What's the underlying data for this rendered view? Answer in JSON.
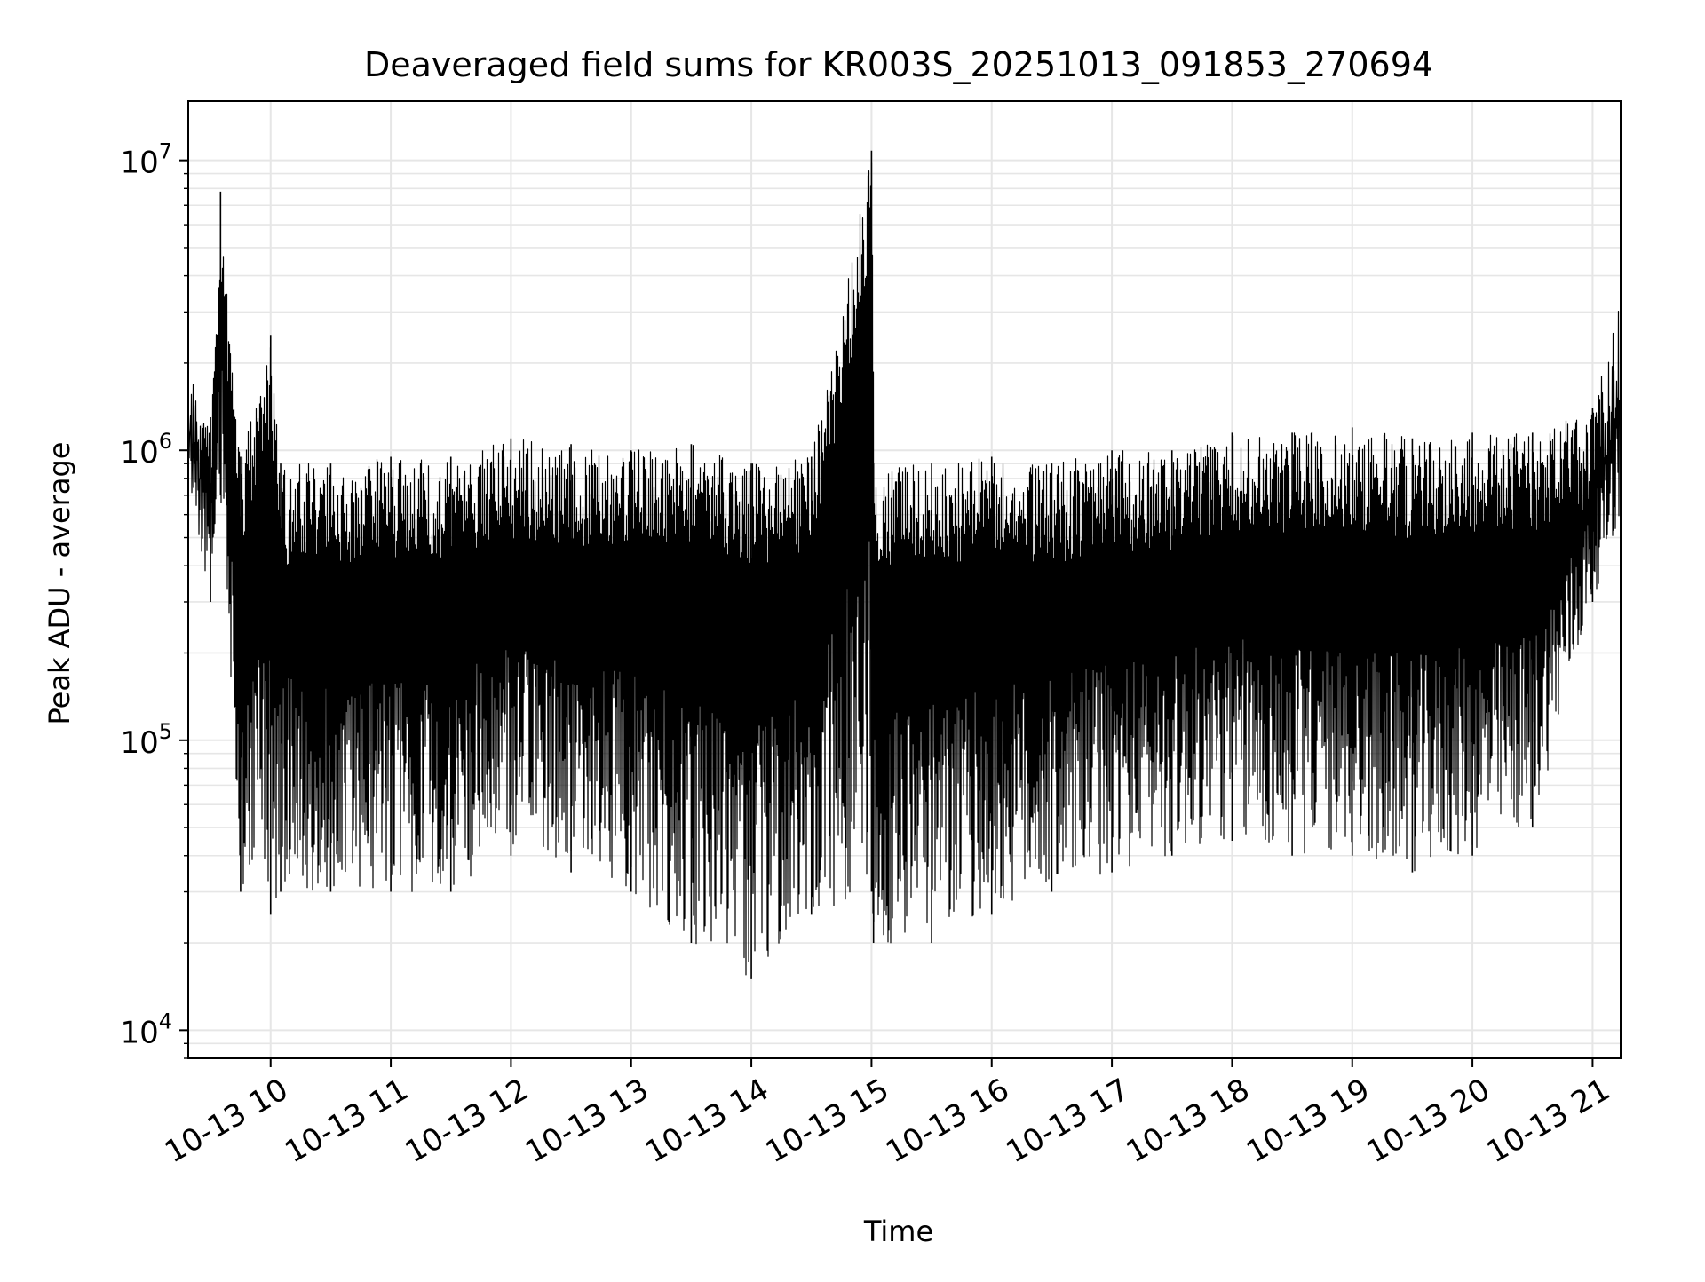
{
  "chart_data": {
    "type": "line",
    "title": "Deaveraged field sums for KR003S_20251013_091853_270694",
    "xlabel": "Time",
    "ylabel": "Peak ADU - average",
    "x_tick_labels": [
      "10-13 10",
      "10-13 11",
      "10-13 12",
      "10-13 13",
      "10-13 14",
      "10-13 15",
      "10-13 16",
      "10-13 17",
      "10-13 18",
      "10-13 19",
      "10-13 20",
      "10-13 21"
    ],
    "x_range": [
      "2025-10-13 09:18:53",
      "2025-10-13 21:14:00"
    ],
    "y_scale": "log",
    "y_ticks": [
      {
        "value": 10000,
        "base": "10",
        "exp": "4"
      },
      {
        "value": 100000,
        "base": "10",
        "exp": "5"
      },
      {
        "value": 1000000,
        "base": "10",
        "exp": "6"
      },
      {
        "value": 10000000,
        "base": "10",
        "exp": "7"
      }
    ],
    "ylim": [
      8000,
      16000000
    ],
    "grid": true,
    "line_color": "#000000",
    "grid_color": "#e6e6e6",
    "series": [
      {
        "x": [
          "2025-10-13 09:18:53",
          "2025-10-13 09:30:00",
          "2025-10-13 09:35:00",
          "2025-10-13 09:45:00",
          "2025-10-13 10:00:00",
          "2025-10-13 10:05:00",
          "2025-10-13 10:30:00",
          "2025-10-13 11:00:00",
          "2025-10-13 11:30:00",
          "2025-10-13 12:00:00",
          "2025-10-13 12:30:00",
          "2025-10-13 13:00:00",
          "2025-10-13 13:30:00",
          "2025-10-13 14:00:00",
          "2025-10-13 14:30:00",
          "2025-10-13 15:00:00",
          "2025-10-13 15:01:00",
          "2025-10-13 15:30:00",
          "2025-10-13 16:00:00",
          "2025-10-13 16:30:00",
          "2025-10-13 17:00:00",
          "2025-10-13 17:30:00",
          "2025-10-13 18:00:00",
          "2025-10-13 18:30:00",
          "2025-10-13 19:00:00",
          "2025-10-13 19:30:00",
          "2025-10-13 20:00:00",
          "2025-10-13 20:30:00",
          "2025-10-13 21:00:00",
          "2025-10-13 21:14:00"
        ],
        "y_high": [
          2000000,
          1300000,
          7800000,
          950000,
          2500000,
          900000,
          900000,
          950000,
          950000,
          1100000,
          1050000,
          1000000,
          1050000,
          900000,
          950000,
          10800000,
          900000,
          900000,
          950000,
          900000,
          1000000,
          1000000,
          1150000,
          1150000,
          1200000,
          1100000,
          1150000,
          1150000,
          1400000,
          3300000
        ],
        "y_low": [
          800000,
          300000,
          700000,
          30000,
          25000,
          30000,
          30000,
          30000,
          30000,
          40000,
          35000,
          30000,
          20000,
          15000,
          25000,
          30000,
          20000,
          20000,
          25000,
          30000,
          35000,
          40000,
          45000,
          40000,
          40000,
          35000,
          40000,
          50000,
          300000,
          600000
        ]
      }
    ]
  }
}
